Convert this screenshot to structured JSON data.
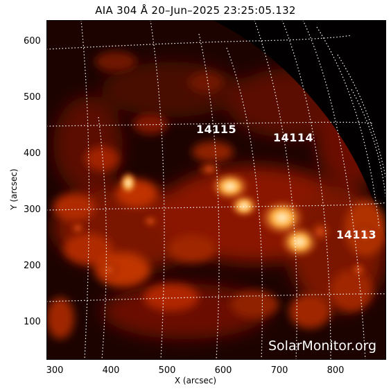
{
  "title": "AIA 304 Å 20–Jun–2025 23:25:05.132",
  "xlabel": "X (arcsec)",
  "ylabel": "Y (arcsec)",
  "x_ticks": [
    "300",
    "400",
    "500",
    "600",
    "700",
    "800"
  ],
  "y_ticks": [
    "600",
    "500",
    "400",
    "300",
    "200",
    "100"
  ],
  "active_regions": [
    {
      "label": "14115"
    },
    {
      "label": "14114"
    },
    {
      "label": "14113"
    }
  ],
  "watermark": "SolarMonitor.org",
  "colors": {
    "background": "#ffffff",
    "sun_dark": "#1a0200",
    "grid": "#ffffff"
  }
}
